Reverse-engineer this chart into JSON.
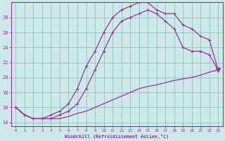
{
  "background_color": "#cce8e8",
  "grid_color": "#88bbbb",
  "line_color": "#993399",
  "xlim": [
    -0.5,
    23.5
  ],
  "ylim": [
    13.5,
    30.0
  ],
  "yticks": [
    14,
    16,
    18,
    20,
    22,
    24,
    26,
    28
  ],
  "xticks": [
    0,
    1,
    2,
    3,
    4,
    5,
    6,
    7,
    8,
    9,
    10,
    11,
    12,
    13,
    14,
    15,
    16,
    17,
    18,
    19,
    20,
    21,
    22,
    23
  ],
  "xlabel": "Windchill (Refroidissement éolien,°C)",
  "curve_a_x": [
    0,
    1,
    2,
    3,
    4,
    5,
    6,
    7,
    8,
    9,
    10,
    11,
    12,
    13,
    14,
    15,
    16,
    17,
    18,
    19,
    20,
    21,
    22,
    23
  ],
  "curve_a_y": [
    16.0,
    15.0,
    14.5,
    14.5,
    15.0,
    15.5,
    16.5,
    18.5,
    21.5,
    23.5,
    26.0,
    28.0,
    29.0,
    29.5,
    30.0,
    30.0,
    29.0,
    28.5,
    28.5,
    27.0,
    26.5,
    25.5,
    25.0,
    21.0
  ],
  "curve_b_x": [
    0,
    1,
    2,
    3,
    4,
    5,
    6,
    7,
    8,
    9,
    10,
    11,
    12,
    13,
    14,
    15,
    16,
    17,
    18,
    19,
    20,
    21,
    22,
    23
  ],
  "curve_b_y": [
    16.0,
    15.0,
    14.5,
    14.5,
    14.5,
    15.0,
    15.5,
    16.5,
    18.5,
    21.0,
    23.5,
    26.0,
    27.5,
    28.0,
    28.5,
    29.0,
    28.5,
    27.5,
    26.5,
    24.0,
    23.5,
    23.5,
    23.0,
    21.0
  ],
  "curve_c_x": [
    0,
    1,
    2,
    3,
    4,
    5,
    6,
    7,
    8,
    9,
    10,
    11,
    12,
    13,
    14,
    15,
    16,
    17,
    18,
    19,
    20,
    21,
    22,
    23
  ],
  "curve_c_y": [
    16.0,
    15.0,
    14.5,
    14.5,
    14.5,
    14.5,
    14.8,
    15.2,
    15.5,
    16.0,
    16.5,
    17.0,
    17.5,
    18.0,
    18.5,
    18.8,
    19.0,
    19.3,
    19.6,
    19.8,
    20.0,
    20.3,
    20.7,
    21.0
  ],
  "end_marker_x": 23,
  "end_marker_y": 21.0
}
